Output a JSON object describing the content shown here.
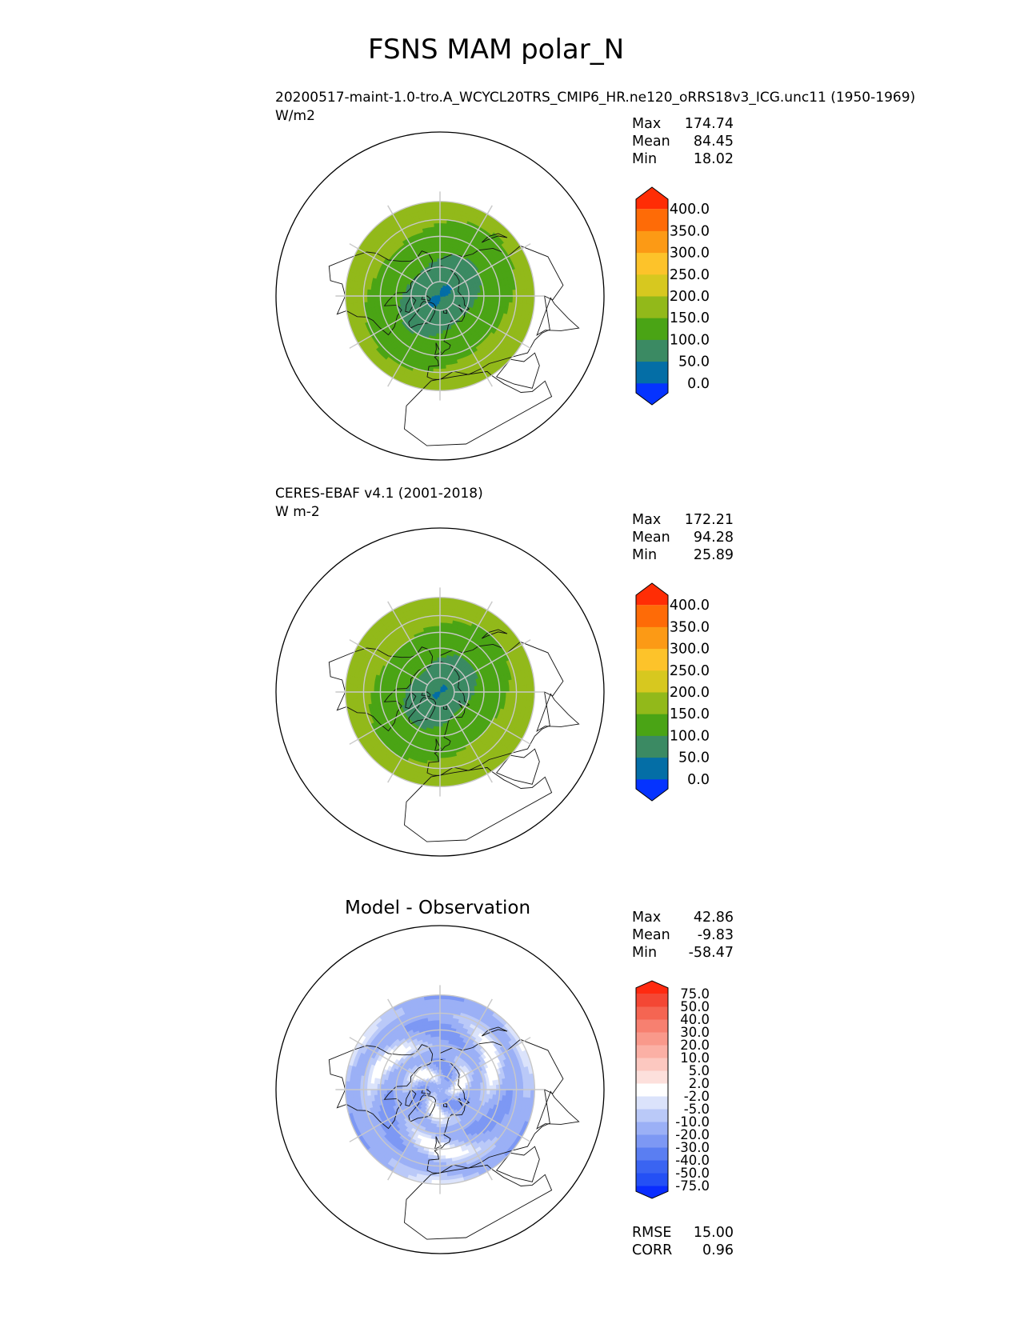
{
  "main_title": "FSNS MAM polar_N",
  "colors": {
    "land_outline": "#111111",
    "grid": "#c8c8c8",
    "frame": "#000000"
  },
  "panels": [
    {
      "id": "test",
      "title_line1": "20200517-maint-1.0-tro.A_WCYCL20TRS_CMIP6_HR.ne120_oRRS18v3_ICG.unc11 (1950-1969)",
      "title_line2": "W/m2",
      "stats": [
        {
          "label": "Max",
          "value": "174.74"
        },
        {
          "label": "Mean",
          "value": "84.45"
        },
        {
          "label": "Min",
          "value": "18.02"
        }
      ],
      "colorbar": {
        "levels": [
          "0.0",
          "50.0",
          "100.0",
          "150.0",
          "200.0",
          "250.0",
          "300.0",
          "350.0",
          "400.0"
        ],
        "colors": [
          "#0533ff",
          "#046ea6",
          "#3b8a63",
          "#4aa415",
          "#92b91a",
          "#d7c81f",
          "#fdc32a",
          "#fc9a15",
          "#fe6b07",
          "#ff2d05"
        ]
      }
    },
    {
      "id": "ref",
      "title_line1": "CERES-EBAF v4.1 (2001-2018)",
      "title_line2": "W m-2",
      "stats": [
        {
          "label": "Max",
          "value": "172.21"
        },
        {
          "label": "Mean",
          "value": "94.28"
        },
        {
          "label": "Min",
          "value": "25.89"
        }
      ],
      "colorbar": {
        "levels": [
          "0.0",
          "50.0",
          "100.0",
          "150.0",
          "200.0",
          "250.0",
          "300.0",
          "350.0",
          "400.0"
        ],
        "colors": [
          "#0533ff",
          "#046ea6",
          "#3b8a63",
          "#4aa415",
          "#92b91a",
          "#d7c81f",
          "#fdc32a",
          "#fc9a15",
          "#fe6b07",
          "#ff2d05"
        ]
      }
    },
    {
      "id": "diff",
      "title_center": "Model - Observation",
      "stats": [
        {
          "label": "Max",
          "value": "42.86"
        },
        {
          "label": "Mean",
          "value": "-9.83"
        },
        {
          "label": "Min",
          "value": "-58.47"
        }
      ],
      "metrics": [
        {
          "label": "RMSE",
          "value": "15.00"
        },
        {
          "label": "CORR",
          "value": "0.96"
        }
      ],
      "colorbar": {
        "levels": [
          "-75.0",
          "-50.0",
          "-40.0",
          "-30.0",
          "-20.0",
          "-10.0",
          "-5.0",
          "-2.0",
          "2.0",
          "5.0",
          "10.0",
          "20.0",
          "30.0",
          "40.0",
          "50.0",
          "75.0"
        ],
        "colors": [
          "#0a2dff",
          "#2450f5",
          "#3a64f2",
          "#5a7ef2",
          "#7d98f4",
          "#9bb0f6",
          "#bac9f8",
          "#dbe3fb",
          "#ffffff",
          "#fde0dc",
          "#fcc8c0",
          "#fbb0a5",
          "#f9998b",
          "#f78070",
          "#f56552",
          "#f44734",
          "#ff2a10"
        ]
      }
    }
  ],
  "chart_data": [
    {
      "type": "heatmap",
      "title": "20200517-maint-1.0-tro.A_WCYCL20TRS_CMIP6_HR.ne120_oRRS18v3_ICG.unc11 (1950-1969)",
      "units": "W/m2",
      "projection": "north polar stereographic",
      "levels": [
        0,
        50,
        100,
        150,
        200,
        250,
        300,
        350,
        400
      ],
      "stats": {
        "max": 174.74,
        "mean": 84.45,
        "min": 18.02
      }
    },
    {
      "type": "heatmap",
      "title": "CERES-EBAF v4.1 (2001-2018)",
      "units": "W m-2",
      "projection": "north polar stereographic",
      "levels": [
        0,
        50,
        100,
        150,
        200,
        250,
        300,
        350,
        400
      ],
      "stats": {
        "max": 172.21,
        "mean": 94.28,
        "min": 25.89
      }
    },
    {
      "type": "heatmap",
      "title": "Model - Observation",
      "projection": "north polar stereographic",
      "levels": [
        -75,
        -50,
        -40,
        -30,
        -20,
        -10,
        -5,
        -2,
        2,
        5,
        10,
        20,
        30,
        40,
        50,
        75
      ],
      "stats": {
        "max": 42.86,
        "mean": -9.83,
        "min": -58.47
      },
      "metrics": {
        "rmse": 15.0,
        "corr": 0.96
      }
    }
  ]
}
